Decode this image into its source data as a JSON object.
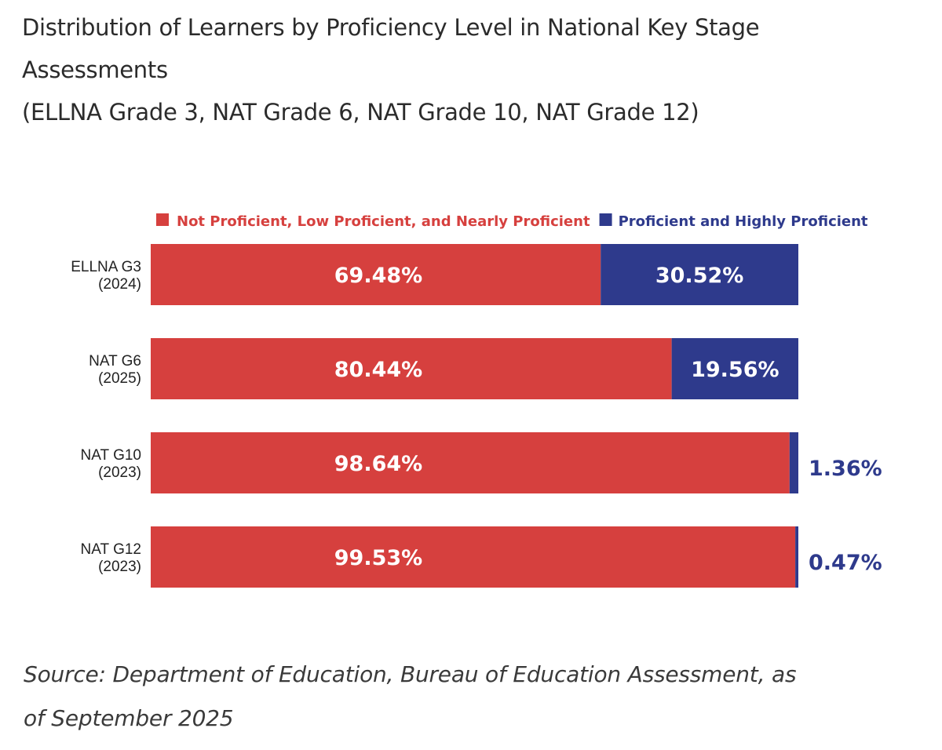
{
  "title": {
    "line1": "Distribution of Learners by Proficiency Level in National Key Stage",
    "line2": "Assessments",
    "line3": "(ELLNA Grade 3, NAT Grade 6, NAT Grade 10, NAT Grade 12)"
  },
  "colors": {
    "not_proficient": "#d6403e",
    "proficient": "#2e3a8c"
  },
  "chart_data": {
    "type": "bar",
    "orientation": "horizontal",
    "stacked": true,
    "legend_position": "top",
    "categories": [
      [
        "ELLNA G3",
        "(2024)"
      ],
      [
        "NAT G6",
        "(2025)"
      ],
      [
        "NAT G10",
        "(2023)"
      ],
      [
        "NAT G12",
        "(2023)"
      ]
    ],
    "series": [
      {
        "name": "Not Proficient, Low Proficient, and Nearly Proficient",
        "values": [
          69.48,
          80.44,
          98.64,
          99.53
        ],
        "labels": [
          "69.48%",
          "80.44%",
          "98.64%",
          "99.53%"
        ]
      },
      {
        "name": "Proficient and Highly Proficient",
        "values": [
          30.52,
          19.56,
          1.36,
          0.47
        ],
        "labels": [
          "30.52%",
          "19.56%",
          "1.36%",
          "0.47%"
        ]
      }
    ],
    "xlim": [
      0,
      100
    ],
    "grid": false
  },
  "source": {
    "line1": "Source: Department of Education, Bureau of Education Assessment, as",
    "line2": "of September 2025"
  }
}
